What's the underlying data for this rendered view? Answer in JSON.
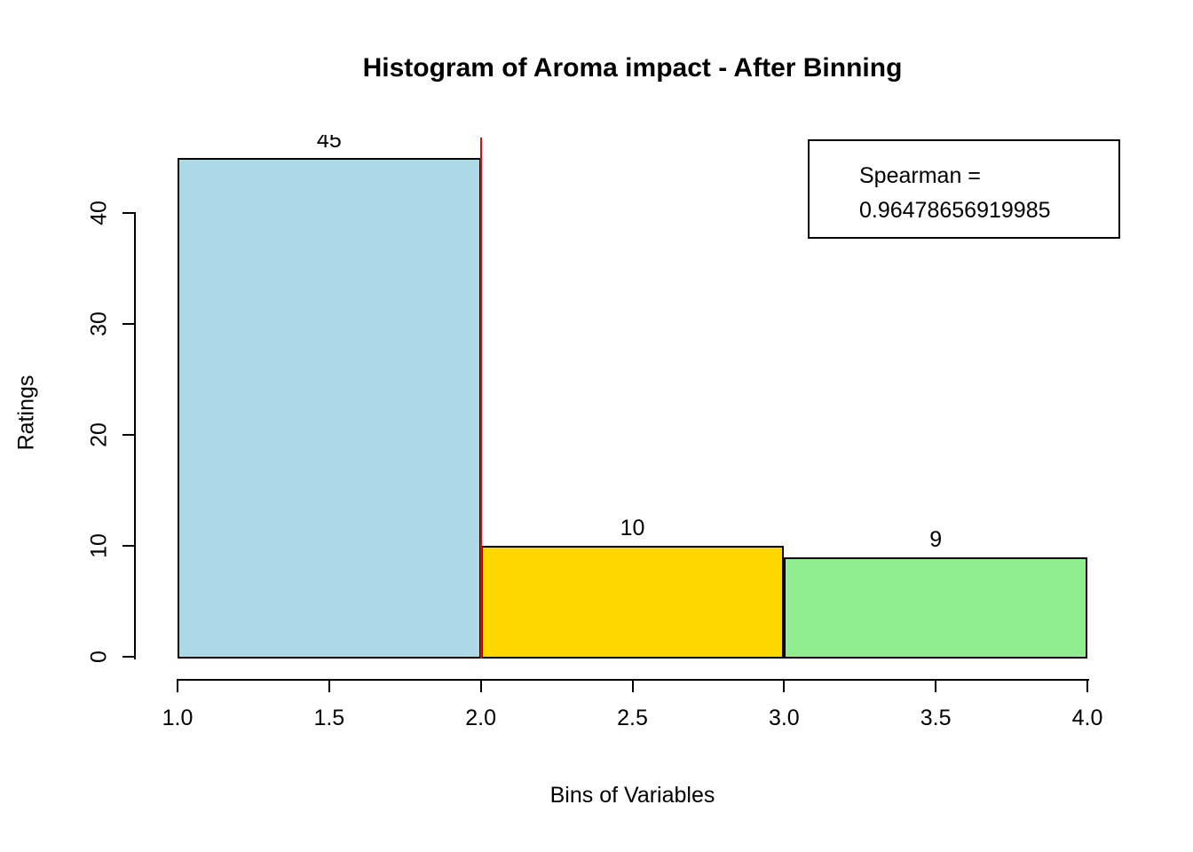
{
  "chart_data": {
    "type": "bar",
    "subtype": "histogram",
    "title": "Histogram of Aroma impact - After Binning",
    "xlabel": "Bins of Variables",
    "ylabel": "Ratings",
    "xlim": [
      1,
      4
    ],
    "ylim": [
      0,
      45
    ],
    "x_ticks": [
      {
        "value": 1.0,
        "label": "1.0"
      },
      {
        "value": 1.5,
        "label": "1.5"
      },
      {
        "value": 2.0,
        "label": "2.0"
      },
      {
        "value": 2.5,
        "label": "2.5"
      },
      {
        "value": 3.0,
        "label": "3.0"
      },
      {
        "value": 3.5,
        "label": "3.5"
      },
      {
        "value": 4.0,
        "label": "4.0"
      }
    ],
    "y_ticks": [
      {
        "value": 0,
        "label": "0"
      },
      {
        "value": 10,
        "label": "10"
      },
      {
        "value": 20,
        "label": "20"
      },
      {
        "value": 30,
        "label": "30"
      },
      {
        "value": 40,
        "label": "40"
      }
    ],
    "bins": [
      {
        "x0": 1,
        "x1": 2,
        "count": 45,
        "label": "45",
        "color": "#ADD8E6"
      },
      {
        "x0": 2,
        "x1": 3,
        "count": 10,
        "label": "10",
        "color": "#FFD700"
      },
      {
        "x0": 3,
        "x1": 4,
        "count": 9,
        "label": "9",
        "color": "#90EE90"
      }
    ],
    "reference_line": {
      "x": 2.0,
      "color": "#FF0000"
    },
    "legend": {
      "lines": [
        "Spearman =",
        "0.96478656919985"
      ]
    },
    "colors": {
      "bar1": "#ADD8E6",
      "bar2": "#FFD700",
      "bar3": "#90EE90",
      "reference": "#FF0000",
      "axis": "#000000",
      "background": "#FFFFFF"
    }
  }
}
